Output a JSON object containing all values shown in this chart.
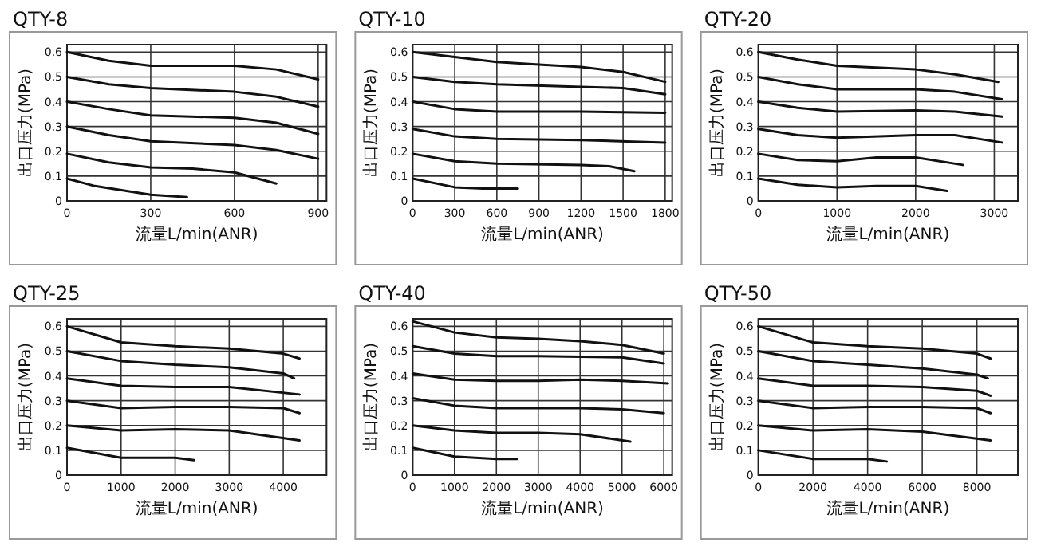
{
  "chart_data": [
    {
      "type": "line",
      "title": "QTY-8",
      "xlabel": "流量L/min(ANR)",
      "ylabel": "出口压力(MPa)",
      "xlim": [
        0,
        930
      ],
      "ylim": [
        0,
        0.63
      ],
      "xticks": [
        0,
        300,
        600,
        900
      ],
      "yticks": [
        0,
        0.1,
        0.2,
        0.3,
        0.4,
        0.5,
        0.6
      ],
      "grid": true,
      "series": [
        {
          "color": "#111111",
          "x": [
            0,
            150,
            300,
            450,
            600,
            750,
            900
          ],
          "values": [
            0.6,
            0.565,
            0.545,
            0.545,
            0.545,
            0.53,
            0.49
          ]
        },
        {
          "color": "#111111",
          "x": [
            0,
            150,
            300,
            600,
            750,
            900
          ],
          "values": [
            0.5,
            0.47,
            0.455,
            0.44,
            0.42,
            0.38
          ]
        },
        {
          "color": "#111111",
          "x": [
            0,
            150,
            300,
            600,
            750,
            900
          ],
          "values": [
            0.4,
            0.37,
            0.345,
            0.335,
            0.315,
            0.27
          ]
        },
        {
          "color": "#111111",
          "x": [
            0,
            150,
            300,
            600,
            750,
            900
          ],
          "values": [
            0.3,
            0.265,
            0.24,
            0.225,
            0.205,
            0.17
          ]
        },
        {
          "color": "#111111",
          "x": [
            0,
            150,
            300,
            450,
            600,
            750
          ],
          "values": [
            0.19,
            0.155,
            0.135,
            0.13,
            0.115,
            0.07
          ]
        },
        {
          "color": "#111111",
          "x": [
            0,
            100,
            300,
            430
          ],
          "values": [
            0.09,
            0.06,
            0.025,
            0.015
          ]
        }
      ]
    },
    {
      "type": "line",
      "title": "QTY-10",
      "xlabel": "流量L/min(ANR)",
      "ylabel": "出口压力(MPa)",
      "xlim": [
        0,
        1850
      ],
      "ylim": [
        0,
        0.63
      ],
      "xticks": [
        0,
        300,
        600,
        900,
        1200,
        1500,
        1800
      ],
      "yticks": [
        0,
        0.1,
        0.2,
        0.3,
        0.4,
        0.5,
        0.6
      ],
      "grid": true,
      "series": [
        {
          "color": "#111111",
          "x": [
            0,
            300,
            600,
            900,
            1200,
            1500,
            1800
          ],
          "values": [
            0.6,
            0.58,
            0.56,
            0.55,
            0.54,
            0.52,
            0.48
          ]
        },
        {
          "color": "#111111",
          "x": [
            0,
            300,
            600,
            1200,
            1500,
            1800
          ],
          "values": [
            0.5,
            0.48,
            0.47,
            0.46,
            0.455,
            0.43
          ]
        },
        {
          "color": "#111111",
          "x": [
            0,
            300,
            600,
            1200,
            1800
          ],
          "values": [
            0.4,
            0.37,
            0.36,
            0.36,
            0.355
          ]
        },
        {
          "color": "#111111",
          "x": [
            0,
            300,
            600,
            1200,
            1800
          ],
          "values": [
            0.29,
            0.26,
            0.25,
            0.245,
            0.235
          ]
        },
        {
          "color": "#111111",
          "x": [
            0,
            300,
            600,
            1200,
            1400,
            1580
          ],
          "values": [
            0.19,
            0.16,
            0.15,
            0.145,
            0.14,
            0.12
          ]
        },
        {
          "color": "#111111",
          "x": [
            0,
            300,
            500,
            750
          ],
          "values": [
            0.09,
            0.055,
            0.05,
            0.05
          ]
        }
      ]
    },
    {
      "type": "line",
      "title": "QTY-20",
      "xlabel": "流量L/min(ANR)",
      "ylabel": "出口压力(MPa)",
      "xlim": [
        0,
        3300
      ],
      "ylim": [
        0,
        0.63
      ],
      "xticks": [
        0,
        1000,
        2000,
        3000
      ],
      "yticks": [
        0,
        0.1,
        0.2,
        0.3,
        0.4,
        0.5,
        0.6
      ],
      "grid": true,
      "series": [
        {
          "color": "#111111",
          "x": [
            0,
            500,
            1000,
            2000,
            2500,
            3050
          ],
          "values": [
            0.6,
            0.57,
            0.545,
            0.53,
            0.51,
            0.48
          ]
        },
        {
          "color": "#111111",
          "x": [
            0,
            500,
            1000,
            2000,
            2500,
            3100
          ],
          "values": [
            0.5,
            0.47,
            0.45,
            0.45,
            0.44,
            0.41
          ]
        },
        {
          "color": "#111111",
          "x": [
            0,
            500,
            1000,
            2000,
            2500,
            3100
          ],
          "values": [
            0.4,
            0.375,
            0.36,
            0.365,
            0.36,
            0.34
          ]
        },
        {
          "color": "#111111",
          "x": [
            0,
            500,
            1000,
            2000,
            2500,
            3100
          ],
          "values": [
            0.29,
            0.265,
            0.255,
            0.265,
            0.265,
            0.235
          ]
        },
        {
          "color": "#111111",
          "x": [
            0,
            500,
            1000,
            1500,
            2000,
            2600
          ],
          "values": [
            0.19,
            0.165,
            0.16,
            0.175,
            0.175,
            0.145
          ]
        },
        {
          "color": "#111111",
          "x": [
            0,
            500,
            1000,
            1500,
            2000,
            2400
          ],
          "values": [
            0.09,
            0.065,
            0.055,
            0.06,
            0.06,
            0.04
          ]
        }
      ]
    },
    {
      "type": "line",
      "title": "QTY-25",
      "xlabel": "流量L/min(ANR)",
      "ylabel": "出口压力(MPa)",
      "xlim": [
        0,
        4800
      ],
      "ylim": [
        0,
        0.63
      ],
      "xticks": [
        0,
        1000,
        2000,
        3000,
        4000
      ],
      "yticks": [
        0,
        0.1,
        0.2,
        0.3,
        0.4,
        0.5,
        0.6
      ],
      "grid": true,
      "series": [
        {
          "color": "#111111",
          "x": [
            0,
            1000,
            2000,
            3000,
            4000,
            4300
          ],
          "values": [
            0.6,
            0.535,
            0.52,
            0.51,
            0.49,
            0.47
          ]
        },
        {
          "color": "#111111",
          "x": [
            0,
            1000,
            2000,
            3000,
            4000,
            4200
          ],
          "values": [
            0.5,
            0.46,
            0.445,
            0.435,
            0.41,
            0.39
          ]
        },
        {
          "color": "#111111",
          "x": [
            0,
            1000,
            2000,
            3000,
            4300
          ],
          "values": [
            0.39,
            0.36,
            0.355,
            0.355,
            0.325
          ]
        },
        {
          "color": "#111111",
          "x": [
            0,
            1000,
            2000,
            3000,
            4000,
            4300
          ],
          "values": [
            0.3,
            0.27,
            0.275,
            0.275,
            0.27,
            0.25
          ]
        },
        {
          "color": "#111111",
          "x": [
            0,
            1000,
            2000,
            3000,
            4300
          ],
          "values": [
            0.2,
            0.18,
            0.185,
            0.18,
            0.14
          ]
        },
        {
          "color": "#111111",
          "x": [
            0,
            1000,
            2000,
            2350
          ],
          "values": [
            0.11,
            0.07,
            0.07,
            0.06
          ]
        }
      ]
    },
    {
      "type": "line",
      "title": "QTY-40",
      "xlabel": "流量L/min(ANR)",
      "ylabel": "出口压力(MPa)",
      "xlim": [
        0,
        6200
      ],
      "ylim": [
        0,
        0.63
      ],
      "xticks": [
        0,
        1000,
        2000,
        3000,
        4000,
        5000,
        6000
      ],
      "yticks": [
        0,
        0.1,
        0.2,
        0.3,
        0.4,
        0.5,
        0.6
      ],
      "grid": true,
      "series": [
        {
          "color": "#111111",
          "x": [
            0,
            1000,
            2000,
            3000,
            4000,
            5000,
            6000
          ],
          "values": [
            0.62,
            0.575,
            0.555,
            0.55,
            0.54,
            0.525,
            0.49
          ]
        },
        {
          "color": "#111111",
          "x": [
            0,
            1000,
            2000,
            3000,
            5000,
            6000
          ],
          "values": [
            0.52,
            0.49,
            0.48,
            0.48,
            0.475,
            0.45
          ]
        },
        {
          "color": "#111111",
          "x": [
            0,
            1000,
            2000,
            3000,
            4000,
            5000,
            6100
          ],
          "values": [
            0.41,
            0.385,
            0.38,
            0.38,
            0.385,
            0.38,
            0.37
          ]
        },
        {
          "color": "#111111",
          "x": [
            0,
            1000,
            2000,
            4000,
            5000,
            6000
          ],
          "values": [
            0.31,
            0.28,
            0.27,
            0.27,
            0.265,
            0.25
          ]
        },
        {
          "color": "#111111",
          "x": [
            0,
            1000,
            2000,
            3000,
            4000,
            5200
          ],
          "values": [
            0.2,
            0.18,
            0.17,
            0.17,
            0.165,
            0.135
          ]
        },
        {
          "color": "#111111",
          "x": [
            0,
            1000,
            2000,
            2500
          ],
          "values": [
            0.11,
            0.075,
            0.065,
            0.065
          ]
        }
      ]
    },
    {
      "type": "line",
      "title": "QTY-50",
      "xlabel": "流量L/min(ANR)",
      "ylabel": "出口压力(MPa)",
      "xlim": [
        0,
        9500
      ],
      "ylim": [
        0,
        0.63
      ],
      "xticks": [
        0,
        2000,
        4000,
        6000,
        8000
      ],
      "yticks": [
        0,
        0.1,
        0.2,
        0.3,
        0.4,
        0.5,
        0.6
      ],
      "grid": true,
      "series": [
        {
          "color": "#111111",
          "x": [
            0,
            2000,
            4000,
            6000,
            8000,
            8500
          ],
          "values": [
            0.6,
            0.535,
            0.52,
            0.51,
            0.49,
            0.47
          ]
        },
        {
          "color": "#111111",
          "x": [
            0,
            2000,
            4000,
            6000,
            8000,
            8400
          ],
          "values": [
            0.5,
            0.46,
            0.445,
            0.43,
            0.405,
            0.39
          ]
        },
        {
          "color": "#111111",
          "x": [
            0,
            2000,
            4000,
            6000,
            8000,
            8500
          ],
          "values": [
            0.39,
            0.36,
            0.36,
            0.355,
            0.34,
            0.32
          ]
        },
        {
          "color": "#111111",
          "x": [
            0,
            2000,
            4000,
            6000,
            8000,
            8500
          ],
          "values": [
            0.3,
            0.27,
            0.275,
            0.275,
            0.27,
            0.25
          ]
        },
        {
          "color": "#111111",
          "x": [
            0,
            2000,
            4000,
            6000,
            8500
          ],
          "values": [
            0.2,
            0.18,
            0.185,
            0.175,
            0.14
          ]
        },
        {
          "color": "#111111",
          "x": [
            0,
            2000,
            4000,
            4700
          ],
          "values": [
            0.1,
            0.065,
            0.065,
            0.055
          ]
        }
      ]
    }
  ]
}
